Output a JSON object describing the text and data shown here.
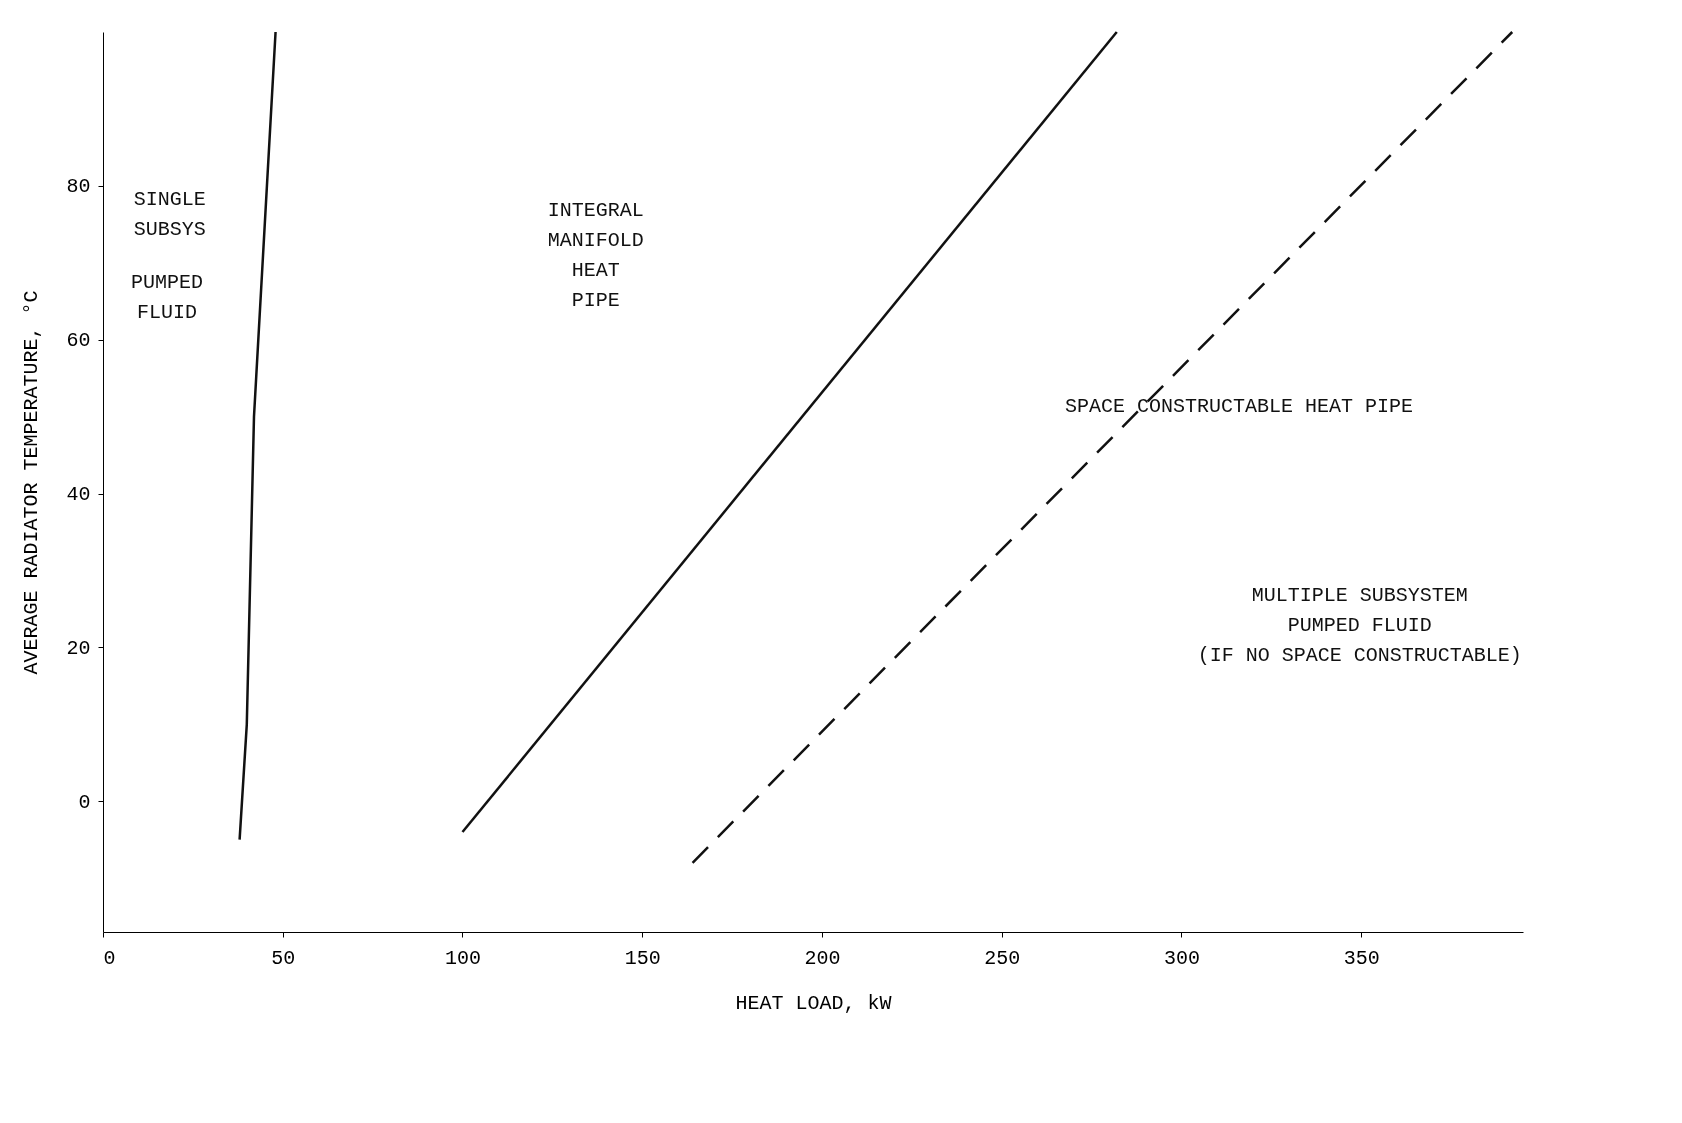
{
  "chart_data": {
    "type": "line",
    "xlabel": "HEAT LOAD, kW",
    "ylabel": "AVERAGE RADIATOR TEMPERATURE, °C",
    "xlim": [
      0,
      395
    ],
    "ylim": [
      -17,
      100
    ],
    "xticks": [
      0,
      50,
      100,
      150,
      200,
      250,
      300,
      350
    ],
    "yticks": [
      0,
      20,
      40,
      60,
      80
    ],
    "grid": false,
    "marker": "none",
    "series": [
      {
        "color": "#111111",
        "line_style": "solid",
        "x": [
          38,
          40,
          42,
          48
        ],
        "values": [
          -5,
          10,
          50,
          100
        ]
      },
      {
        "color": "#111111",
        "line_style": "solid",
        "x": [
          100,
          282
        ],
        "values": [
          -4,
          100
        ]
      },
      {
        "color": "#111111",
        "line_style": "dashed",
        "x": [
          164,
          392
        ],
        "values": [
          -8,
          100
        ]
      }
    ],
    "annotations": [
      "SINGLE\nSUBSYS",
      "PUMPED\nFLUID",
      "INTEGRAL\nMANIFOLD\nHEAT\nPIPE",
      "SPACE CONSTRUCTABLE HEAT PIPE",
      "MULTIPLE SUBSYSTEM\nPUMPED FLUID\n(IF NO SPACE CONSTRUCTABLE)"
    ]
  }
}
